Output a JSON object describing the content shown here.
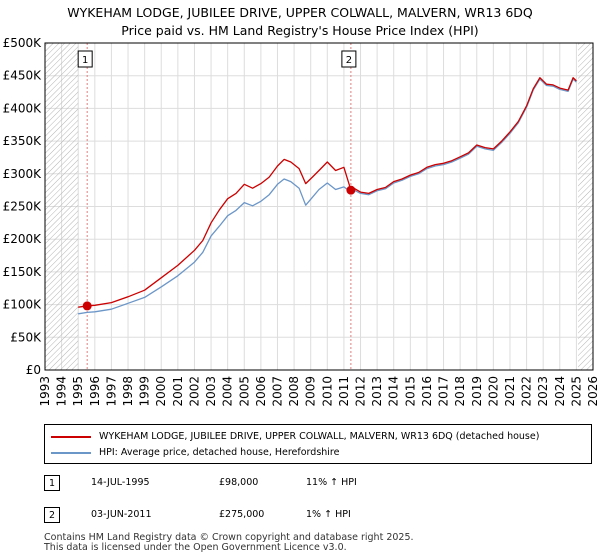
{
  "title_line1": "WYKEHAM LODGE, JUBILEE DRIVE, UPPER COLWALL, MALVERN, WR13 6DQ",
  "title_line2": "Price paid vs. HM Land Registry's House Price Index (HPI)",
  "colors": {
    "property": "#cc0000",
    "hpi": "#6b96c8",
    "marker_line": "#e08080",
    "hatch": "#b0b0b0",
    "grid": "#dddddd"
  },
  "chart_data": {
    "type": "line",
    "xlim": [
      1993,
      2026
    ],
    "ylim": [
      0,
      500000
    ],
    "x_ticks": [
      "1993",
      "1994",
      "1995",
      "1996",
      "1997",
      "1998",
      "1999",
      "2000",
      "2001",
      "2002",
      "2003",
      "2004",
      "2005",
      "2006",
      "2007",
      "2008",
      "2009",
      "2010",
      "2011",
      "2012",
      "2013",
      "2014",
      "2015",
      "2016",
      "2017",
      "2018",
      "2019",
      "2020",
      "2021",
      "2022",
      "2023",
      "2024",
      "2025",
      "2026"
    ],
    "y_ticks": [
      {
        "value": 0,
        "label": "£0"
      },
      {
        "value": 50000,
        "label": "£50K"
      },
      {
        "value": 100000,
        "label": "£100K"
      },
      {
        "value": 150000,
        "label": "£150K"
      },
      {
        "value": 200000,
        "label": "£200K"
      },
      {
        "value": 250000,
        "label": "£250K"
      },
      {
        "value": 300000,
        "label": "£300K"
      },
      {
        "value": 350000,
        "label": "£350K"
      },
      {
        "value": 400000,
        "label": "£400K"
      },
      {
        "value": 450000,
        "label": "£450K"
      },
      {
        "value": 500000,
        "label": "£500K"
      }
    ],
    "hatched_ranges": [
      [
        1993,
        1995.0
      ],
      [
        2025.1,
        2026
      ]
    ],
    "series": [
      {
        "name": "WYKEHAM LODGE, JUBILEE DRIVE, UPPER COLWALL, MALVERN, WR13 6DQ (detached house)",
        "x": [
          1995.0,
          1995.54,
          1996.0,
          1997.0,
          1998.0,
          1999.0,
          2000.0,
          2001.0,
          2002.0,
          2002.5,
          2003.0,
          2003.5,
          2004.0,
          2004.5,
          2005.0,
          2005.5,
          2006.0,
          2006.5,
          2007.0,
          2007.4,
          2007.8,
          2008.3,
          2008.7,
          2009.1,
          2009.5,
          2010.0,
          2010.5,
          2011.0,
          2011.42,
          2011.6,
          2012.0,
          2012.5,
          2013.0,
          2013.5,
          2014.0,
          2014.5,
          2015.0,
          2015.5,
          2016.0,
          2016.5,
          2017.0,
          2017.5,
          2018.0,
          2018.5,
          2019.0,
          2019.5,
          2020.0,
          2020.5,
          2021.0,
          2021.5,
          2022.0,
          2022.4,
          2022.8,
          2023.2,
          2023.6,
          2024.0,
          2024.5,
          2024.8,
          2025.0
        ],
        "values": [
          96000,
          98000,
          99000,
          103000,
          112000,
          122000,
          141000,
          160000,
          183000,
          198000,
          225000,
          245000,
          262000,
          270000,
          284000,
          278000,
          285000,
          295000,
          312000,
          322000,
          318000,
          308000,
          285000,
          295000,
          305000,
          318000,
          305000,
          310000,
          275000,
          278000,
          272000,
          270000,
          276000,
          279000,
          288000,
          292000,
          298000,
          302000,
          310000,
          314000,
          316000,
          320000,
          326000,
          332000,
          344000,
          340000,
          338000,
          350000,
          364000,
          380000,
          404000,
          430000,
          447000,
          437000,
          436000,
          431000,
          428000,
          447000,
          442000
        ]
      },
      {
        "name": "HPI: Average price, detached house, Herefordshire",
        "x": [
          1995.0,
          1995.54,
          1996.0,
          1997.0,
          1998.0,
          1999.0,
          2000.0,
          2001.0,
          2002.0,
          2002.5,
          2003.0,
          2003.5,
          2004.0,
          2004.5,
          2005.0,
          2005.5,
          2006.0,
          2006.5,
          2007.0,
          2007.4,
          2007.8,
          2008.3,
          2008.7,
          2009.1,
          2009.5,
          2010.0,
          2010.5,
          2011.0,
          2011.42,
          2011.6,
          2012.0,
          2012.5,
          2013.0,
          2013.5,
          2014.0,
          2014.5,
          2015.0,
          2015.5,
          2016.0,
          2016.5,
          2017.0,
          2017.5,
          2018.0,
          2018.5,
          2019.0,
          2019.5,
          2020.0,
          2020.5,
          2021.0,
          2021.5,
          2022.0,
          2022.4,
          2022.8,
          2023.2,
          2023.6,
          2024.0,
          2024.5,
          2024.8,
          2025.0
        ],
        "values": [
          86000,
          88000,
          89000,
          93000,
          102000,
          111000,
          127000,
          144000,
          165000,
          180000,
          205000,
          220000,
          236000,
          244000,
          256000,
          251000,
          258000,
          268000,
          284000,
          292000,
          288000,
          278000,
          252000,
          264000,
          276000,
          286000,
          276000,
          280000,
          272000,
          275000,
          270000,
          268000,
          274000,
          277000,
          286000,
          290000,
          296000,
          300000,
          308000,
          312000,
          314000,
          318000,
          324000,
          330000,
          342000,
          338000,
          336000,
          348000,
          362000,
          378000,
          402000,
          428000,
          445000,
          435000,
          434000,
          429000,
          426000,
          445000,
          440000
        ]
      }
    ],
    "markers": [
      {
        "label": "1",
        "x": 1995.54,
        "value": 98000
      },
      {
        "label": "2",
        "x": 2011.42,
        "value": 275000
      }
    ]
  },
  "legend": {
    "property_label": "WYKEHAM LODGE, JUBILEE DRIVE, UPPER COLWALL, MALVERN, WR13 6DQ (detached house)",
    "hpi_label": "HPI: Average price, detached house, Herefordshire"
  },
  "sales": [
    {
      "num": "1",
      "date": "14-JUL-1995",
      "price": "£98,000",
      "hpi": "11% ↑ HPI"
    },
    {
      "num": "2",
      "date": "03-JUN-2011",
      "price": "£275,000",
      "hpi": "1% ↑ HPI"
    }
  ],
  "footer_line1": "Contains HM Land Registry data © Crown copyright and database right 2025.",
  "footer_line2": "This data is licensed under the Open Government Licence v3.0."
}
